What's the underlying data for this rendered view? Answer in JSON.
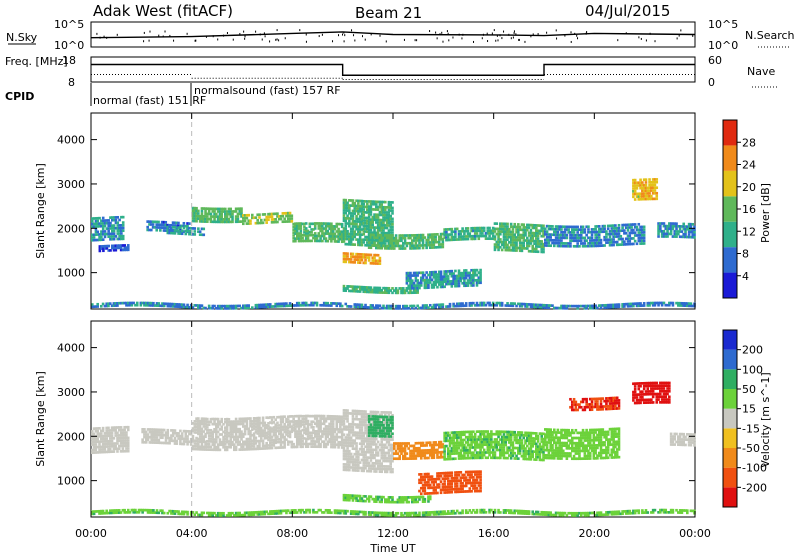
{
  "header": {
    "station": "Adak West (fitACF)",
    "beam": "Beam 21",
    "date": "04/Jul/2015"
  },
  "chart_data": [
    {
      "type": "line",
      "panel": "noise",
      "left_label": "N.Sky",
      "right_label": "N.Search",
      "yticks_left": [
        "10^5",
        "10^0"
      ],
      "yticks_right": [
        "10^5",
        "10^0"
      ],
      "x": [
        "00:00",
        "04:00",
        "08:00",
        "10:00",
        "12:00",
        "16:00",
        "18:00",
        "20:00",
        "24:00"
      ],
      "series": [
        {
          "values": [
            0.35,
            0.4,
            0.55,
            0.62,
            0.5,
            0.48,
            0.45,
            0.55,
            0.5
          ]
        }
      ]
    },
    {
      "type": "line",
      "panel": "frequency",
      "left_label": "Freq. [MHz]",
      "right_label": "Nave",
      "yticks_left": [
        18,
        8
      ],
      "yticks_right": [
        60,
        0
      ],
      "ylim_left": [
        8,
        18
      ],
      "x": [
        "00:00",
        "10:00",
        "10:00",
        "18:00",
        "18:00",
        "24:00"
      ],
      "series": [
        {
          "values": [
            15,
            15,
            10.7,
            10.7,
            15,
            15
          ]
        }
      ],
      "nave_transitions": [
        {
          "from": "00:00",
          "to": "04:00",
          "level": 0.3
        },
        {
          "from": "04:00",
          "to": "10:00",
          "level": 0.15
        },
        {
          "from": "10:00",
          "to": "18:00",
          "level": 0.1
        },
        {
          "from": "18:00",
          "to": "24:00",
          "level": 0.3
        }
      ]
    },
    {
      "type": "table",
      "panel": "cpid",
      "label": "CPID",
      "entries": [
        {
          "text": "normal (fast) 151 RF",
          "start": "00:00"
        },
        {
          "text": "normalsound (fast) 157 RF",
          "start": "04:00"
        }
      ]
    },
    {
      "type": "heatmap",
      "panel": "power",
      "ylabel": "Slant Range [km]",
      "yticks": [
        1000,
        2000,
        3000,
        4000
      ],
      "ylim": [
        180,
        4600
      ],
      "xlim": [
        "00:00",
        "24:00"
      ],
      "colorbar": {
        "label": "Power [dB]",
        "ticks": [
          4,
          8,
          12,
          16,
          20,
          24,
          28
        ],
        "range": [
          0,
          30
        ],
        "colors": [
          "#1a1ad6",
          "#2e6bd0",
          "#2fb08a",
          "#5fb85a",
          "#e3c21a",
          "#f08a1a",
          "#e02a10"
        ]
      },
      "bands": [
        {
          "t": [
            0.0,
            1.3
          ],
          "r": [
            1700,
            2250
          ],
          "v": 9
        },
        {
          "t": [
            0.3,
            1.5
          ],
          "r": [
            1450,
            1600
          ],
          "v": 5
        },
        {
          "t": [
            2.2,
            4.0
          ],
          "r": [
            1900,
            2150
          ],
          "v": 7
        },
        {
          "t": [
            3.0,
            4.5
          ],
          "r": [
            1850,
            2050
          ],
          "v": 10
        },
        {
          "t": [
            4.0,
            6.0
          ],
          "r": [
            2150,
            2500
          ],
          "v": 14
        },
        {
          "t": [
            6.0,
            8.0
          ],
          "r": [
            2100,
            2350
          ],
          "v": 16
        },
        {
          "t": [
            8.0,
            10.0
          ],
          "r": [
            1650,
            2100
          ],
          "v": 14
        },
        {
          "t": [
            10.0,
            11.5
          ],
          "r": [
            1200,
            1450
          ],
          "v": 22
        },
        {
          "t": [
            10.0,
            12.0
          ],
          "r": [
            1600,
            2650
          ],
          "v": 12
        },
        {
          "t": [
            11.0,
            14.0
          ],
          "r": [
            1550,
            1900
          ],
          "v": 14
        },
        {
          "t": [
            14.0,
            16.0
          ],
          "r": [
            1700,
            2000
          ],
          "v": 11
        },
        {
          "t": [
            10.0,
            13.0
          ],
          "r": [
            550,
            700
          ],
          "v": 12
        },
        {
          "t": [
            12.5,
            15.5
          ],
          "r": [
            650,
            1050
          ],
          "v": 10
        },
        {
          "t": [
            16.0,
            18.0
          ],
          "r": [
            1450,
            2100
          ],
          "v": 13
        },
        {
          "t": [
            18.0,
            22.0
          ],
          "r": [
            1600,
            2100
          ],
          "v": 8
        },
        {
          "t": [
            21.5,
            22.5
          ],
          "r": [
            2600,
            3100
          ],
          "v": 20
        },
        {
          "t": [
            22.5,
            24.0
          ],
          "r": [
            1750,
            2100
          ],
          "v": 9
        },
        {
          "t": [
            0.0,
            24.0
          ],
          "r": [
            200,
            300
          ],
          "v": 8
        }
      ]
    },
    {
      "type": "heatmap",
      "panel": "velocity",
      "ylabel": "Slant Range [km]",
      "yticks": [
        1000,
        2000,
        3000,
        4000
      ],
      "ylim": [
        180,
        4600
      ],
      "xlabel": "Time UT",
      "xticks": [
        "00:00",
        "04:00",
        "08:00",
        "12:00",
        "16:00",
        "20:00",
        "00:00"
      ],
      "colorbar": {
        "label": "Velocity [m s^-1]",
        "ticks": [
          200,
          100,
          50,
          15,
          -15,
          -50,
          -100,
          -200
        ],
        "colors": [
          "#1a2ad0",
          "#2e6bd0",
          "#2fae62",
          "#6cd23a",
          "#c8c8c0",
          "#f0c020",
          "#f08a1a",
          "#f05010",
          "#e01010"
        ]
      },
      "bands": [
        {
          "t": [
            0.0,
            1.5
          ],
          "r": [
            1600,
            2200
          ],
          "v": 0
        },
        {
          "t": [
            2.0,
            4.0
          ],
          "r": [
            1800,
            2150
          ],
          "v": 0
        },
        {
          "t": [
            4.0,
            10.0
          ],
          "r": [
            1700,
            2450
          ],
          "v": 0
        },
        {
          "t": [
            10.0,
            12.0
          ],
          "r": [
            1200,
            2600
          ],
          "v": -5
        },
        {
          "t": [
            11.0,
            12.0
          ],
          "r": [
            2000,
            2500
          ],
          "v": 40
        },
        {
          "t": [
            12.0,
            14.0
          ],
          "r": [
            1500,
            1900
          ],
          "v": -40
        },
        {
          "t": [
            13.0,
            15.5
          ],
          "r": [
            700,
            1200
          ],
          "v": -80
        },
        {
          "t": [
            10.0,
            13.5
          ],
          "r": [
            520,
            680
          ],
          "v": 30
        },
        {
          "t": [
            14.0,
            18.0
          ],
          "r": [
            1450,
            2100
          ],
          "v": 30
        },
        {
          "t": [
            18.0,
            21.0
          ],
          "r": [
            1500,
            2200
          ],
          "v": 25
        },
        {
          "t": [
            19.0,
            21.0
          ],
          "r": [
            2600,
            2900
          ],
          "v": -150
        },
        {
          "t": [
            21.5,
            23.0
          ],
          "r": [
            2700,
            3200
          ],
          "v": -200
        },
        {
          "t": [
            23.0,
            24.0
          ],
          "r": [
            1750,
            2050
          ],
          "v": 0
        },
        {
          "t": [
            0.0,
            24.0
          ],
          "r": [
            220,
            320
          ],
          "v": 30
        }
      ]
    }
  ]
}
